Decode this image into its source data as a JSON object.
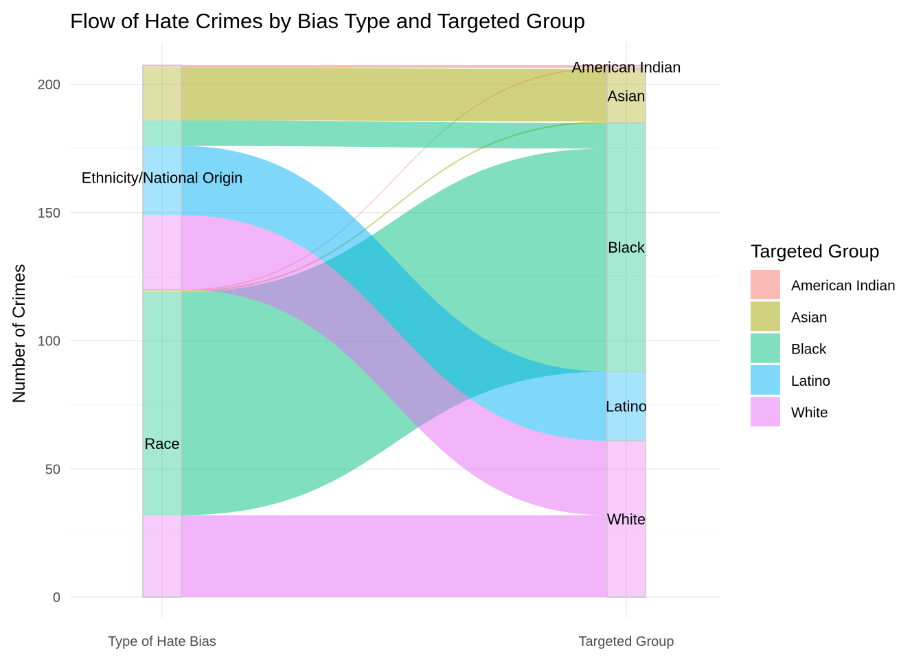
{
  "chart_data": {
    "type": "alluvial",
    "title": "Flow of Hate Crimes by Bias Type and Targeted Group",
    "xlabel": "",
    "ylabel": "Number of Crimes",
    "axes": [
      "Type of Hate Bias",
      "Targeted Group"
    ],
    "y_ticks": [
      0,
      50,
      100,
      150,
      200
    ],
    "ylim": [
      0,
      206
    ],
    "grid": true,
    "legend_title": "Targeted Group",
    "legend_position": "right",
    "fill_alpha": 0.5,
    "colors": {
      "American Indian": "#F8766D",
      "Asian": "#A3A500",
      "Black": "#00BF7D",
      "Latino": "#00B0F6",
      "White": "#E76BF3"
    },
    "bias_types": [
      "Race",
      "Ethnicity/National Origin"
    ],
    "targeted_groups": [
      "White",
      "Latino",
      "Black",
      "Asian",
      "American Indian"
    ],
    "flows": [
      {
        "bias": "Race",
        "group": "White",
        "value": 32
      },
      {
        "bias": "Race",
        "group": "Black",
        "value": 87
      },
      {
        "bias": "Race",
        "group": "Asian",
        "value": 0.6
      },
      {
        "bias": "Race",
        "group": "American Indian",
        "value": 0.4
      },
      {
        "bias": "Ethnicity/National Origin",
        "group": "White",
        "value": 29
      },
      {
        "bias": "Ethnicity/National Origin",
        "group": "Latino",
        "value": 27
      },
      {
        "bias": "Ethnicity/National Origin",
        "group": "Black",
        "value": 10
      },
      {
        "bias": "Ethnicity/National Origin",
        "group": "Asian",
        "value": 20.5
      },
      {
        "bias": "Ethnicity/National Origin",
        "group": "American Indian",
        "value": 1
      }
    ]
  }
}
